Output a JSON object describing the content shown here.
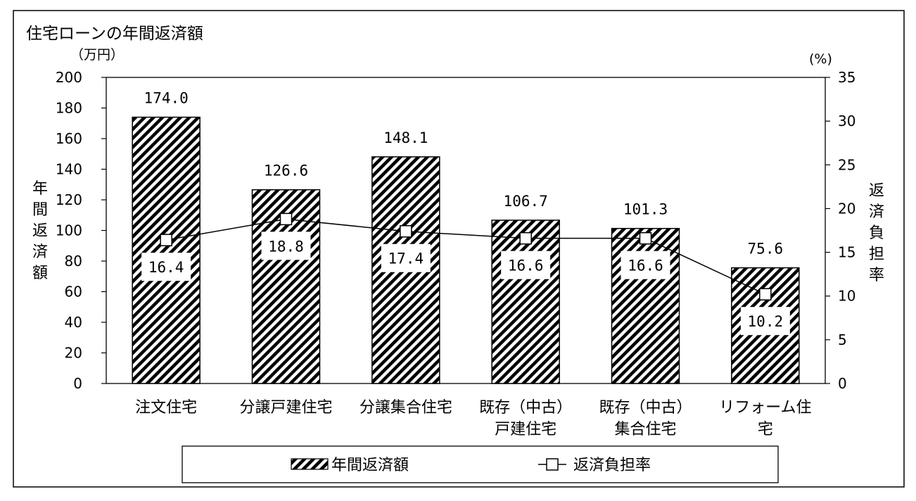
{
  "chart_data": {
    "type": "bar",
    "title": "住宅ローンの年間返済額",
    "y_unit": "（万円）",
    "y2_unit": "(%)",
    "ylabel": "年間返済額",
    "y2label": "返済負担率",
    "ylim": [
      0,
      200
    ],
    "y2lim": [
      0,
      35
    ],
    "yticks": [
      "0",
      "20",
      "40",
      "60",
      "80",
      "100",
      "120",
      "140",
      "160",
      "180",
      "200"
    ],
    "y2ticks": [
      "0",
      "5",
      "10",
      "15",
      "20",
      "25",
      "30",
      "35"
    ],
    "categories": [
      [
        "注文住宅"
      ],
      [
        "分譲戸建住宅"
      ],
      [
        "分譲集合住宅"
      ],
      [
        "既存（中古）",
        "戸建住宅"
      ],
      [
        "既存（中古）",
        "集合住宅"
      ],
      [
        "リフォーム住",
        "宅"
      ]
    ],
    "series": [
      {
        "name": "年間返済額",
        "type": "bar",
        "axis": "left",
        "values": [
          174.0,
          126.6,
          148.1,
          106.7,
          101.3,
          75.6
        ],
        "labels": [
          "174.0",
          "126.6",
          "148.1",
          "106.7",
          "101.3",
          "75.6"
        ]
      },
      {
        "name": "返済負担率",
        "type": "line",
        "axis": "right",
        "values": [
          16.4,
          18.8,
          17.4,
          16.6,
          16.6,
          10.2
        ],
        "labels": [
          "16.4",
          "18.8",
          "17.4",
          "16.6",
          "16.6",
          "10.2"
        ]
      }
    ],
    "legend": "bottom",
    "grid": false
  }
}
